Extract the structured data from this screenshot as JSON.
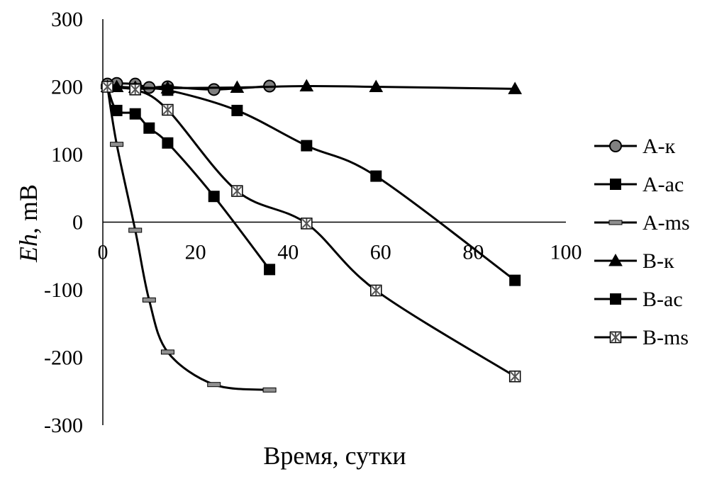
{
  "chart_data": {
    "type": "line",
    "xlabel": "Время, сутки",
    "ylabel_italic": "Eh",
    "ylabel_rest": ", mB",
    "xlim": [
      0,
      100
    ],
    "ylim": [
      -300,
      300
    ],
    "x_ticks": [
      "0",
      "20",
      "40",
      "60",
      "80",
      "100"
    ],
    "y_ticks": [
      "300",
      "200",
      "100",
      "0",
      "-100",
      "-200",
      "-300"
    ],
    "grid": false,
    "legend_position": "right",
    "series": [
      {
        "name": "A-к",
        "marker": "circle",
        "color": "#000000",
        "marker_fill": "#808080",
        "x": [
          1,
          3,
          7,
          10,
          14,
          24,
          36
        ],
        "y": [
          204,
          205,
          204,
          199,
          200,
          196,
          201
        ]
      },
      {
        "name": "A-ac",
        "marker": "square",
        "color": "#000000",
        "marker_fill": "#000000",
        "x": [
          1,
          3,
          7,
          10,
          14,
          24,
          36
        ],
        "y": [
          200,
          165,
          160,
          139,
          117,
          38,
          -70
        ]
      },
      {
        "name": "A-ms",
        "marker": "dash",
        "color": "#000000",
        "marker_fill": "#909090",
        "x": [
          1,
          3,
          7,
          10,
          14,
          24,
          36
        ],
        "y": [
          200,
          115,
          -12,
          -115,
          -192,
          -240,
          -248
        ]
      },
      {
        "name": "B-к",
        "marker": "triangle",
        "color": "#000000",
        "marker_fill": "#000000",
        "x": [
          1,
          3,
          7,
          14,
          29,
          44,
          59,
          89
        ],
        "y": [
          200,
          200,
          199,
          198,
          199,
          201,
          200,
          197
        ]
      },
      {
        "name": "B-ac",
        "marker": "square",
        "color": "#000000",
        "marker_fill": "#000000",
        "x": [
          1,
          7,
          14,
          29,
          44,
          59,
          89
        ],
        "y": [
          200,
          197,
          195,
          165,
          113,
          68,
          -86
        ]
      },
      {
        "name": "B-ms",
        "marker": "star",
        "color": "#000000",
        "marker_fill": "#909090",
        "x": [
          1,
          7,
          14,
          29,
          44,
          59,
          89
        ],
        "y": [
          200,
          196,
          166,
          46,
          -2,
          -101,
          -228
        ]
      }
    ]
  }
}
